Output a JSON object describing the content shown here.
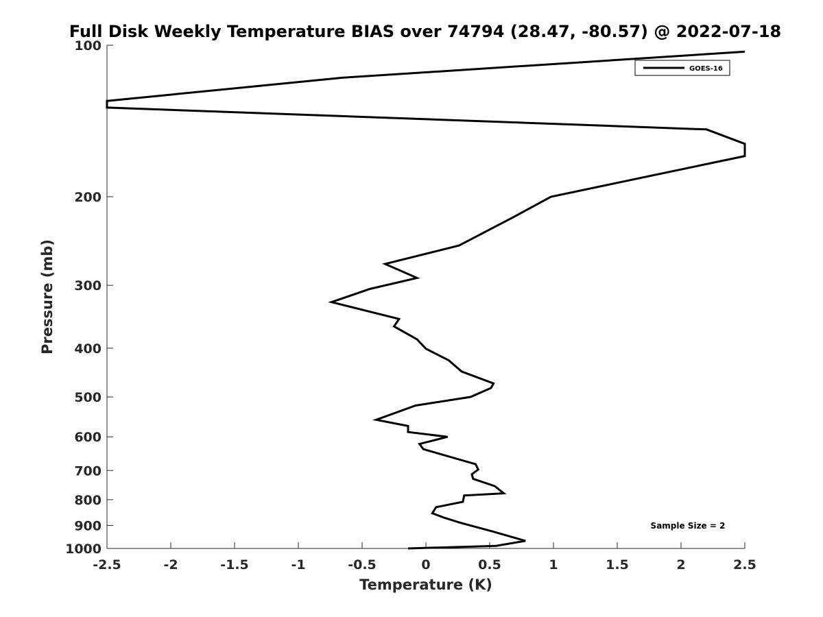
{
  "chart_data": {
    "type": "line",
    "title": "Full Disk Weekly Temperature BIAS over 74794 (28.47, -80.57) @ 2022-07-18",
    "xlabel": "Temperature (K)",
    "ylabel": "Pressure (mb)",
    "xlim": [
      -2.5,
      2.5
    ],
    "ylim": [
      1000,
      100
    ],
    "y_scale": "log",
    "y_reversed": true,
    "grid": false,
    "x_ticks": [
      -2.5,
      -2,
      -1.5,
      -1,
      -0.5,
      0,
      0.5,
      1,
      1.5,
      2,
      2.5
    ],
    "x_tick_labels": [
      "-2.5",
      "-2",
      "-1.5",
      "-1",
      "-0.5",
      "0",
      "0.5",
      "1",
      "1.5",
      "2",
      "2.5"
    ],
    "y_ticks": [
      100,
      200,
      300,
      400,
      500,
      600,
      700,
      800,
      900,
      1000
    ],
    "y_tick_labels": [
      "100",
      "200",
      "300",
      "400",
      "500",
      "600",
      "700",
      "800",
      "900",
      "1000"
    ],
    "legend_position": "top-right",
    "annotation": "Sample Size = 2",
    "line_color": "#000000",
    "series": [
      {
        "name": "GOES-16",
        "points": [
          {
            "x": 2.5,
            "y": 103
          },
          {
            "x": -0.65,
            "y": 116
          },
          {
            "x": -2.5,
            "y": 129
          },
          {
            "x": -2.5,
            "y": 133
          },
          {
            "x": 2.2,
            "y": 147
          },
          {
            "x": 2.5,
            "y": 157
          },
          {
            "x": 2.5,
            "y": 166
          },
          {
            "x": 0.98,
            "y": 200
          },
          {
            "x": 0.68,
            "y": 220
          },
          {
            "x": 0.26,
            "y": 250
          },
          {
            "x": -0.32,
            "y": 272
          },
          {
            "x": -0.07,
            "y": 290
          },
          {
            "x": -0.44,
            "y": 305
          },
          {
            "x": -0.74,
            "y": 324
          },
          {
            "x": -0.21,
            "y": 350
          },
          {
            "x": -0.25,
            "y": 362
          },
          {
            "x": -0.07,
            "y": 384
          },
          {
            "x": 0.0,
            "y": 401
          },
          {
            "x": 0.18,
            "y": 423
          },
          {
            "x": 0.28,
            "y": 445
          },
          {
            "x": 0.53,
            "y": 470
          },
          {
            "x": 0.51,
            "y": 480
          },
          {
            "x": 0.35,
            "y": 500
          },
          {
            "x": -0.08,
            "y": 520
          },
          {
            "x": -0.39,
            "y": 555
          },
          {
            "x": -0.14,
            "y": 571
          },
          {
            "x": -0.14,
            "y": 587
          },
          {
            "x": 0.17,
            "y": 600
          },
          {
            "x": -0.05,
            "y": 620
          },
          {
            "x": -0.02,
            "y": 635
          },
          {
            "x": 0.39,
            "y": 680
          },
          {
            "x": 0.41,
            "y": 697
          },
          {
            "x": 0.36,
            "y": 712
          },
          {
            "x": 0.37,
            "y": 727
          },
          {
            "x": 0.54,
            "y": 752
          },
          {
            "x": 0.61,
            "y": 777
          },
          {
            "x": 0.3,
            "y": 785
          },
          {
            "x": 0.29,
            "y": 808
          },
          {
            "x": 0.08,
            "y": 828
          },
          {
            "x": 0.05,
            "y": 851
          },
          {
            "x": 0.14,
            "y": 868
          },
          {
            "x": 0.27,
            "y": 889
          },
          {
            "x": 0.52,
            "y": 925
          },
          {
            "x": 0.78,
            "y": 966
          },
          {
            "x": 0.55,
            "y": 988
          },
          {
            "x": -0.14,
            "y": 1000
          }
        ]
      }
    ]
  }
}
